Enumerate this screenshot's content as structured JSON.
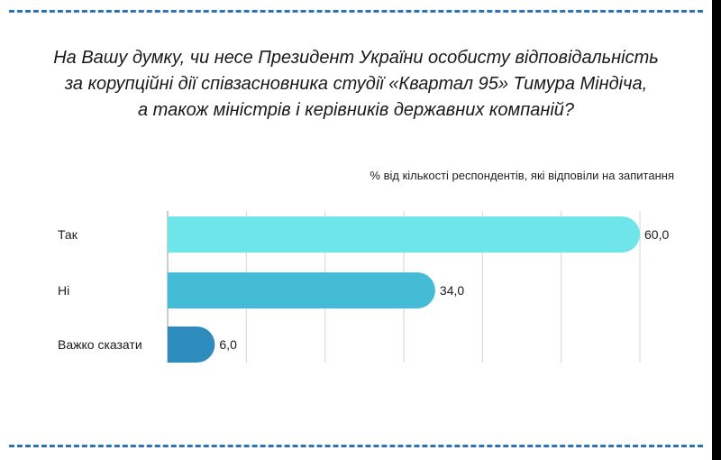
{
  "title_lines": [
    "На Вашу думку, чи несе Президент України особисту відповідальність",
    "за корупційні дії співзасновника студії «Квартал 95» Тимура Міндіча,",
    "а також міністрів і керівників державних компаній?"
  ],
  "chart_data": {
    "type": "bar",
    "orientation": "horizontal",
    "title": "На Вашу думку, чи несе Президент України особисту відповідальність за корупційні дії співзасновника студії «Квартал 95» Тимура Міндіча, а також міністрів і керівників державних компаній?",
    "subtitle": "% від кількості респондентів, які відповіли на запитання",
    "categories": [
      "Так",
      "Ні",
      "Важко сказати"
    ],
    "values": [
      60.0,
      34.0,
      6.0
    ],
    "value_labels": [
      "60,0",
      "34,0",
      "6,0"
    ],
    "colors": [
      "#6ee6e9",
      "#45bcd6",
      "#2e8cbd"
    ],
    "xlim": [
      0,
      60
    ],
    "grid": true,
    "legend": "none"
  },
  "colors": {
    "border_dash": "#2e73b6",
    "gridline": "#d6d6d6",
    "text": "#1a1a1a"
  }
}
